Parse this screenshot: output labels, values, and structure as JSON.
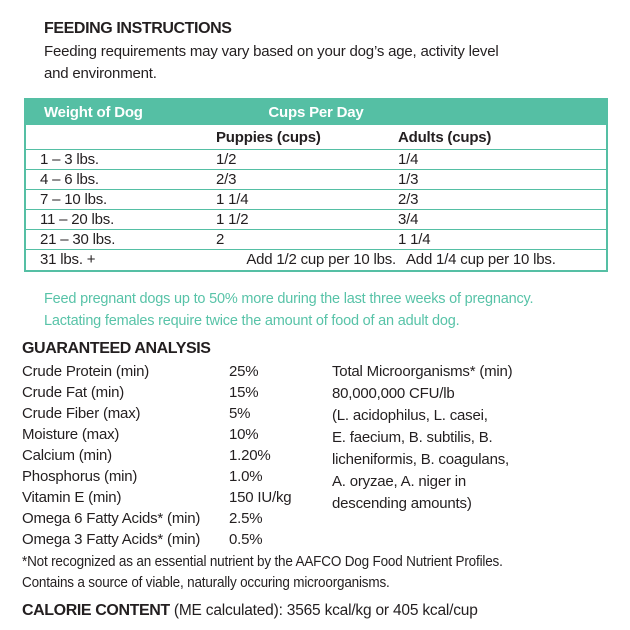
{
  "colors": {
    "accent_teal": "#55bfa4",
    "note_teal": "#58c3a8",
    "text_ink": "#231f20",
    "header_text": "#ffffff",
    "background": "#ffffff"
  },
  "feeding_instructions": {
    "title": "FEEDING INSTRUCTIONS",
    "description_line1": "Feeding requirements may vary based on your dog’s age, activity level",
    "description_line2": "and environment."
  },
  "feeding_table": {
    "header": {
      "weight_col": "Weight of Dog",
      "cups_col": "Cups Per Day"
    },
    "subheader": {
      "puppies": "Puppies (cups)",
      "adults": "Adults (cups)"
    },
    "rows": [
      {
        "weight": "1 – 3 lbs.",
        "puppies": "1/2",
        "adults": "1/4"
      },
      {
        "weight": "4 – 6 lbs.",
        "puppies": "2/3",
        "adults": "1/3"
      },
      {
        "weight": "7 – 10 lbs.",
        "puppies": "1 1/4",
        "adults": "2/3"
      },
      {
        "weight": "11 – 20 lbs.",
        "puppies": "1 1/2",
        "adults": "3/4"
      },
      {
        "weight": "21 – 30 lbs.",
        "puppies": "2",
        "adults": "1 1/4"
      },
      {
        "weight": "31 lbs. +",
        "puppies": "Add 1/2 cup per 10 lbs.",
        "adults": "Add 1/4 cup per 10 lbs."
      }
    ]
  },
  "pregnancy_note": {
    "line1": "Feed pregnant dogs up to 50% more during the last three weeks of pregnancy.",
    "line2": "Lactating females require twice the amount of food of an adult dog."
  },
  "guaranteed_analysis": {
    "title": "GUARANTEED ANALYSIS",
    "nutrients": [
      {
        "label": "Crude Protein (min)",
        "value": "25%"
      },
      {
        "label": "Crude Fat (min)",
        "value": "15%"
      },
      {
        "label": "Crude Fiber (max)",
        "value": "5%"
      },
      {
        "label": "Moisture (max)",
        "value": "10%"
      },
      {
        "label": "Calcium (min)",
        "value": "1.20%"
      },
      {
        "label": "Phosphorus (min)",
        "value": "1.0%"
      },
      {
        "label": "Vitamin E (min)",
        "value": "150 IU/kg"
      },
      {
        "label": "Omega 6 Fatty Acids* (min)",
        "value": "2.5%"
      },
      {
        "label": "Omega 3 Fatty Acids* (min)",
        "value": "0.5%"
      }
    ],
    "microorganisms": {
      "line1": "Total Microorganisms* (min)",
      "line2": "80,000,000 CFU/lb",
      "line3": "(L. acidophilus, L. casei,",
      "line4": "E. faecium, B. subtilis, B.",
      "line5": "licheniformis, B. coagulans,",
      "line6": "A. oryzae, A. niger in",
      "line7": "descending amounts)"
    }
  },
  "footnote": {
    "line1": "*Not recognized as an essential nutrient by the AAFCO Dog Food Nutrient Profiles.",
    "line2": "Contains a source of viable, naturally occuring microorganisms."
  },
  "calorie_content": {
    "title": "CALORIE CONTENT",
    "detail": " (ME calculated): 3565 kcal/kg or 405 kcal/cup"
  }
}
